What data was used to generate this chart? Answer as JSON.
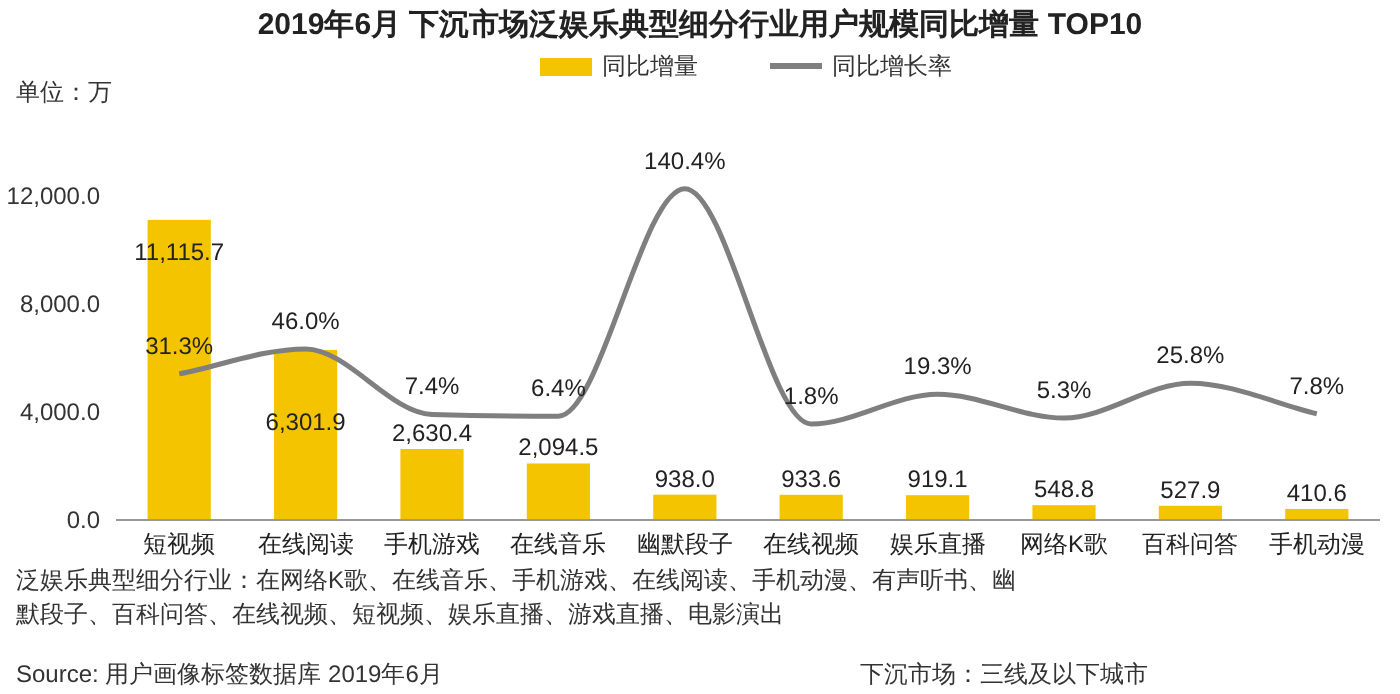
{
  "chart_data": {
    "type": "bar",
    "title": "2019年6月 下沉市场泛娱乐典型细分行业用户规模同比增量 TOP10",
    "ylabel": "单位：万",
    "categories": [
      "短视频",
      "在线阅读",
      "手机游戏",
      "在线音乐",
      "幽默段子",
      "在线视频",
      "娱乐直播",
      "网络K歌",
      "百科问答",
      "手机动漫"
    ],
    "series": [
      {
        "name": "同比增量",
        "color": "#f5c400",
        "values": [
          11115.7,
          6301.9,
          2630.4,
          2094.5,
          938.0,
          933.6,
          919.1,
          548.8,
          527.9,
          410.6
        ],
        "value_labels": [
          "11,115.7",
          "6,301.9",
          "2,630.4",
          "2,094.5",
          "938.0",
          "933.6",
          "919.1",
          "548.8",
          "527.9",
          "410.6"
        ]
      },
      {
        "name": "同比增长率",
        "type": "line",
        "axis": "y2",
        "color": "#7f7f7f",
        "values": [
          31.3,
          46.0,
          7.4,
          6.4,
          140.4,
          1.8,
          19.3,
          5.3,
          25.8,
          7.8
        ],
        "value_labels": [
          "31.3%",
          "46.0%",
          "7.4%",
          "6.4%",
          "140.4%",
          "1.8%",
          "19.3%",
          "5.3%",
          "25.8%",
          "7.8%"
        ]
      }
    ],
    "ylim": [
      0,
      12000
    ],
    "yticks": [
      {
        "value": 0,
        "label": "0.0"
      },
      {
        "value": 4000,
        "label": "4,000.0"
      },
      {
        "value": 8000,
        "label": "8,000.0"
      },
      {
        "value": 12000,
        "label": "12,000.0"
      }
    ],
    "legend": "top",
    "grid": false,
    "annotations": [
      "泛娱乐典型细分行业：在网络K歌、在线音乐、手机游戏、在线阅读、手机动漫、有声听书、幽默段子、百科问答、在线视频、短视频、娱乐直播、游戏直播、电影演出",
      "Source: 用户画像标签数据库 2019年6月",
      "下沉市场：三线及以下城市"
    ]
  }
}
